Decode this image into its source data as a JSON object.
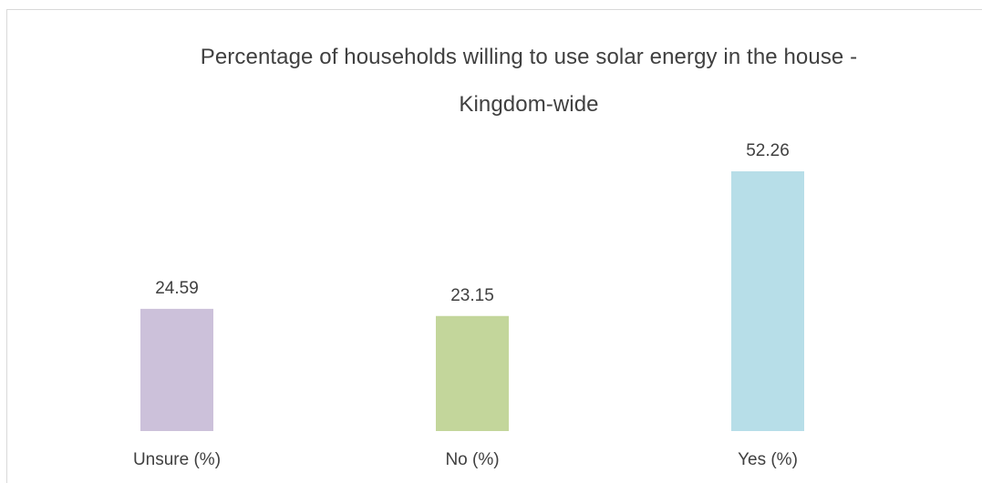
{
  "chart_data": {
    "type": "bar",
    "title": "Percentage of households willing to use solar energy in the house - Kingdom-wide",
    "title_lines": [
      "Percentage of households willing to use solar energy in the house -",
      "Kingdom-wide"
    ],
    "categories": [
      "Unsure (%)",
      "No (%)",
      "Yes (%)"
    ],
    "values": [
      24.59,
      23.15,
      52.26
    ],
    "value_labels": [
      "24.59",
      "23.15",
      "52.26"
    ],
    "colors": [
      "#CCC1DA",
      "#C3D69B",
      "#B7DEE8"
    ],
    "xlabel": "",
    "ylabel": "",
    "ylim": [
      0,
      55
    ],
    "grid": false,
    "legend": "none"
  }
}
